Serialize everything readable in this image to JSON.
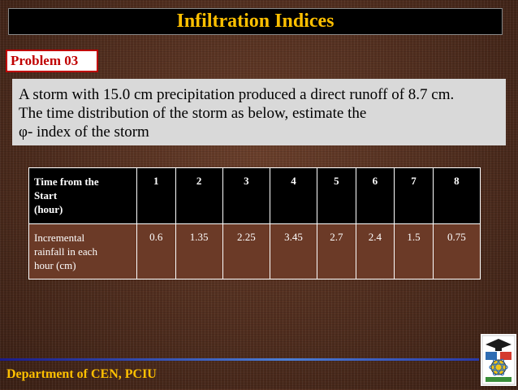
{
  "title": "Infiltration Indices",
  "problem_label": "Problem 03",
  "statement": {
    "line1": "A storm with 15.0 cm precipitation produced a direct runoff of 8.7 cm.",
    "line2": "The time distribution of the storm as below, estimate the",
    "line3": "φ- index of the storm"
  },
  "table": {
    "header_label": [
      "Time from the",
      "Start",
      "(hour)"
    ],
    "hours": [
      "1",
      "2",
      "3",
      "4",
      "5",
      "6",
      "7",
      "8"
    ],
    "row_label": [
      "Incremental",
      "rainfall in each",
      "hour (cm)"
    ],
    "rainfall": [
      "0.6",
      "1.35",
      "2.25",
      "3.45",
      "2.7",
      "2.4",
      "1.5",
      "0.75"
    ]
  },
  "footer": "Department of CEN, PCIU",
  "colors": {
    "title_text": "#ffc000",
    "problem_label": "#c00000",
    "footer_text": "#ffc000"
  },
  "logo": {
    "icon": "university-seal-icon"
  }
}
